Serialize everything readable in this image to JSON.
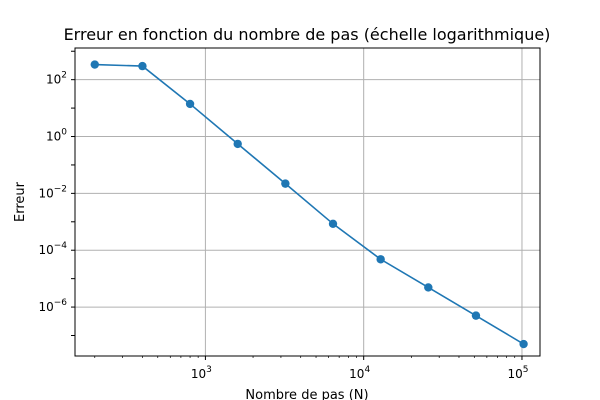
{
  "chart_data": {
    "type": "line",
    "title": "Erreur en fonction du nombre de pas (échelle logarithmique)",
    "xlabel": "Nombre de pas (N)",
    "ylabel": "Erreur",
    "xscale": "log",
    "yscale": "log",
    "xlim": [
      150,
      130000
    ],
    "ylim": [
      1.9e-08,
      1300
    ],
    "grid": true,
    "marker": "circle",
    "color": "#1f77b4",
    "xticks": [
      {
        "value": 1000,
        "base": "10",
        "exp": "3"
      },
      {
        "value": 10000,
        "base": "10",
        "exp": "4"
      },
      {
        "value": 100000,
        "base": "10",
        "exp": "5"
      }
    ],
    "yticks": [
      {
        "value": 100,
        "base": "10",
        "exp": "2"
      },
      {
        "value": 1,
        "base": "10",
        "exp": "0"
      },
      {
        "value": 0.01,
        "base": "10",
        "exp": "−2"
      },
      {
        "value": 0.0001,
        "base": "10",
        "exp": "−4"
      },
      {
        "value": 1e-06,
        "base": "10",
        "exp": "−6"
      }
    ],
    "series": [
      {
        "x": [
          200,
          400,
          800,
          1600,
          3200,
          6400,
          12800,
          25600,
          51200,
          102400
        ],
        "y": [
          340,
          300,
          14,
          0.55,
          0.022,
          0.00085,
          4.8e-05,
          4.9e-06,
          5e-07,
          5e-08
        ]
      }
    ]
  }
}
